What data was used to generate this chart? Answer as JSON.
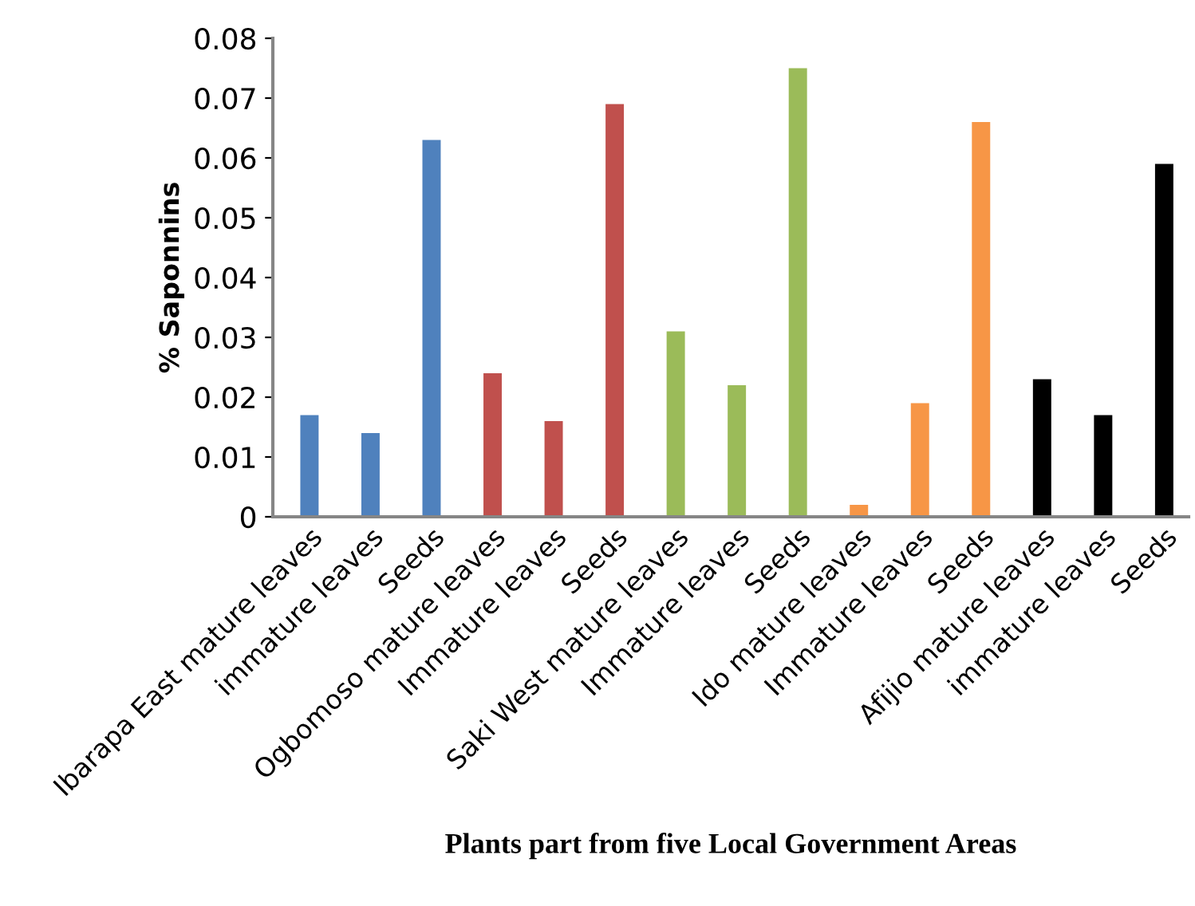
{
  "chart_data": {
    "type": "bar",
    "xlabel": "Plants part from five Local Government Areas",
    "ylabel": "% Saponnins",
    "categories": [
      "Ibarapa East mature leaves",
      "immature leaves",
      "Seeds",
      "Ogbomoso mature leaves",
      "Immature leaves",
      "Seeds",
      "Saki West mature leaves",
      "Immature leaves",
      "Seeds",
      "Ido mature leaves",
      "Immature leaves",
      "Seeds",
      "Afijio mature leaves",
      "immature leaves",
      "Seeds"
    ],
    "values": [
      0.017,
      0.014,
      0.063,
      0.024,
      0.016,
      0.069,
      0.031,
      0.022,
      0.075,
      0.002,
      0.019,
      0.066,
      0.023,
      0.017,
      0.059
    ],
    "colors": [
      "#4f81bd",
      "#4f81bd",
      "#4f81bd",
      "#c0504d",
      "#c0504d",
      "#c0504d",
      "#9bbb59",
      "#9bbb59",
      "#9bbb59",
      "#f79646",
      "#f79646",
      "#f79646",
      "#000000",
      "#000000",
      "#000000"
    ],
    "ylim": [
      0,
      0.08
    ],
    "yticks": [
      0,
      0.01,
      0.02,
      0.03,
      0.04,
      0.05,
      0.06,
      0.07,
      0.08
    ],
    "grid": false,
    "legend": false
  }
}
